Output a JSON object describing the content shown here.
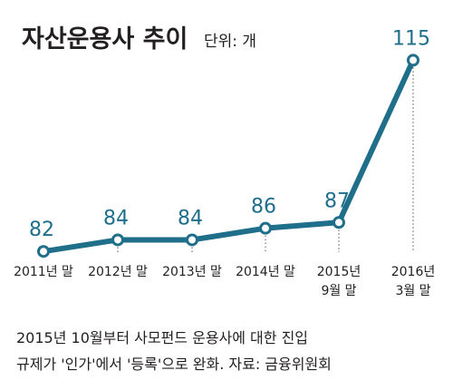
{
  "chart_data": {
    "type": "line",
    "title": "자산운용사 추이",
    "unit_label": "단위: 개",
    "categories": [
      "2011년 말",
      "2012년 말",
      "2013년 말",
      "2014년 말",
      "2015년 9월 말",
      "2016년 3월 말"
    ],
    "tick_lines": [
      [
        "2011년 말"
      ],
      [
        "2012년 말"
      ],
      [
        "2013년 말"
      ],
      [
        "2014년 말"
      ],
      [
        "2015년",
        "9월 말"
      ],
      [
        "2016년",
        "3월 말"
      ]
    ],
    "values": [
      82,
      84,
      84,
      86,
      87,
      115
    ],
    "ylim": [
      80,
      116
    ],
    "grid": false,
    "legend": "none",
    "colors": {
      "line": "#1f6f8b",
      "text": "#231f20",
      "guide": "#555555"
    }
  },
  "footnote": {
    "line1": "2015년 10월부터 사모펀드 운용사에 대한 진입",
    "line2": "규제가 '인가'에서 '등록'으로 완화. 자료: 금융위원회"
  }
}
